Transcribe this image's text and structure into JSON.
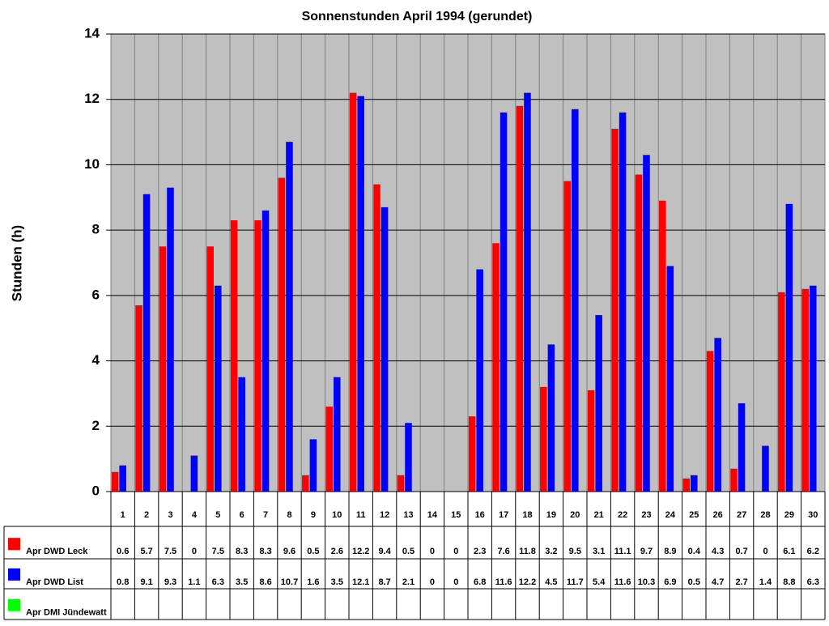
{
  "chart_data": {
    "type": "bar",
    "title": "Sonnenstunden April 1994 (gerundet)",
    "y_label": "Stunden (h)",
    "categories": [
      "1",
      "2",
      "3",
      "4",
      "5",
      "6",
      "7",
      "8",
      "9",
      "10",
      "11",
      "12",
      "13",
      "14",
      "15",
      "16",
      "17",
      "18",
      "19",
      "20",
      "21",
      "22",
      "23",
      "24",
      "25",
      "26",
      "27",
      "28",
      "29",
      "30"
    ],
    "series": [
      {
        "name": "Apr DWD Leck",
        "color": "#ff0000",
        "values": [
          0.6,
          5.7,
          7.5,
          0,
          7.5,
          8.3,
          8.3,
          9.6,
          0.5,
          2.6,
          12.2,
          9.4,
          0.5,
          0,
          0,
          2.3,
          7.6,
          11.8,
          3.2,
          9.5,
          3.1,
          11.1,
          9.7,
          8.9,
          0.4,
          4.3,
          0.7,
          0,
          6.1,
          6.2
        ]
      },
      {
        "name": "Apr DWD List",
        "color": "#0000ff",
        "values": [
          0.8,
          9.1,
          9.3,
          1.1,
          6.3,
          3.5,
          8.6,
          10.7,
          1.6,
          3.5,
          12.1,
          8.7,
          2.1,
          0,
          0,
          6.8,
          11.6,
          12.2,
          4.5,
          11.7,
          5.4,
          11.6,
          10.3,
          6.9,
          0.5,
          4.7,
          2.7,
          1.4,
          8.8,
          6.3
        ]
      },
      {
        "name": "Apr DMI Jündewatt",
        "color": "#00ff00",
        "values": [
          null,
          null,
          null,
          null,
          null,
          null,
          null,
          null,
          null,
          null,
          null,
          null,
          null,
          null,
          null,
          null,
          null,
          null,
          null,
          null,
          null,
          null,
          null,
          null,
          null,
          null,
          null,
          null,
          null,
          null
        ]
      }
    ],
    "ylim": [
      0,
      14
    ],
    "yticks": [
      0,
      2,
      4,
      6,
      8,
      10,
      12,
      14
    ],
    "grid": true,
    "data_table": true
  }
}
